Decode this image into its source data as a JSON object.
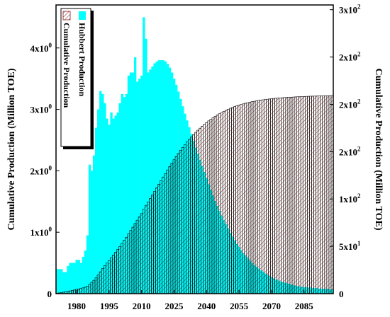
{
  "chart_data": {
    "type": "bar",
    "ylabel_left": "Cumulative Production (Million TOE)",
    "ylabel_right": "Cumulative Production (Million TOE)",
    "x_ticks": [
      "1980",
      "1995",
      "2010",
      "2025",
      "2040",
      "2055",
      "2070",
      "2085"
    ],
    "xlim": [
      1971,
      2098
    ],
    "y_left_ticks": [
      "0",
      "1x10",
      "2x10",
      "3x10",
      "4x10"
    ],
    "y_left_tick_exps": [
      "",
      "0",
      "0",
      "0",
      "0"
    ],
    "y_left_lim": [
      0,
      4.7
    ],
    "y_right_ticks": [
      "0",
      "5x10",
      "1x10",
      "2x10",
      "2x10",
      "2x10",
      "3x10"
    ],
    "y_right_tick_exps": [
      "",
      "1",
      "2",
      "2",
      "2",
      "2",
      "2"
    ],
    "y_right_tick_values": [
      0,
      50,
      100,
      150,
      200,
      250,
      300
    ],
    "y_right_lim": [
      0,
      305
    ],
    "grid": false,
    "legend_position": "top-left, rotated vertically",
    "series": [
      {
        "name": "Hubbert Production",
        "axis": "left",
        "style": "filled",
        "color": "#00ffff",
        "x": [
          1971,
          1972,
          1973,
          1974,
          1975,
          1976,
          1977,
          1978,
          1979,
          1980,
          1981,
          1982,
          1983,
          1984,
          1985,
          1986,
          1987,
          1988,
          1989,
          1990,
          1991,
          1992,
          1993,
          1994,
          1995,
          1996,
          1997,
          1998,
          1999,
          2000,
          2001,
          2002,
          2003,
          2004,
          2005,
          2006,
          2007,
          2008,
          2009,
          2010,
          2011,
          2012,
          2013,
          2014,
          2015,
          2016,
          2017,
          2018,
          2019,
          2020,
          2021,
          2022,
          2023,
          2024,
          2025,
          2026,
          2027,
          2028,
          2029,
          2030,
          2031,
          2032,
          2033,
          2034,
          2035,
          2036,
          2037,
          2038,
          2039,
          2040,
          2041,
          2042,
          2043,
          2044,
          2045,
          2046,
          2047,
          2048,
          2049,
          2050,
          2051,
          2052,
          2053,
          2054,
          2055,
          2056,
          2057,
          2058,
          2059,
          2060,
          2061,
          2062,
          2063,
          2064,
          2065,
          2066,
          2067,
          2068,
          2069,
          2070,
          2071,
          2072,
          2073,
          2074,
          2075,
          2076,
          2077,
          2078,
          2079,
          2080,
          2081,
          2082,
          2083,
          2084,
          2085,
          2086,
          2087,
          2088,
          2089,
          2090,
          2091,
          2092,
          2093,
          2094,
          2095,
          2096,
          2097,
          2098
        ],
        "values": [
          0.4,
          0.4,
          0.4,
          0.35,
          0.35,
          0.45,
          0.5,
          0.5,
          0.5,
          0.55,
          0.55,
          0.5,
          0.6,
          0.7,
          0.95,
          2.1,
          2.0,
          2.25,
          2.7,
          3.0,
          3.3,
          3.25,
          3.1,
          2.85,
          2.75,
          2.95,
          2.85,
          2.9,
          2.95,
          3.1,
          3.25,
          3.2,
          3.25,
          3.55,
          3.6,
          3.6,
          3.85,
          3.45,
          3.5,
          3.55,
          4.5,
          4.15,
          3.6,
          3.65,
          3.7,
          3.75,
          3.78,
          3.8,
          3.8,
          3.8,
          3.78,
          3.74,
          3.68,
          3.6,
          3.5,
          3.4,
          3.29,
          3.17,
          3.05,
          2.93,
          2.82,
          2.71,
          2.6,
          2.49,
          2.38,
          2.28,
          2.18,
          2.08,
          1.98,
          1.88,
          1.78,
          1.69,
          1.6,
          1.51,
          1.43,
          1.35,
          1.27,
          1.2,
          1.13,
          1.06,
          0.99,
          0.93,
          0.87,
          0.81,
          0.76,
          0.71,
          0.66,
          0.62,
          0.58,
          0.54,
          0.5,
          0.47,
          0.44,
          0.41,
          0.38,
          0.36,
          0.33,
          0.31,
          0.29,
          0.27,
          0.25,
          0.23,
          0.22,
          0.2,
          0.19,
          0.18,
          0.17,
          0.16,
          0.15,
          0.14,
          0.13,
          0.12,
          0.12,
          0.11,
          0.11,
          0.1,
          0.1,
          0.1,
          0.09,
          0.09,
          0.09,
          0.08,
          0.08,
          0.08,
          0.08,
          0.08,
          0.07,
          0.07
        ]
      },
      {
        "name": "Cumulative Production",
        "axis": "right",
        "style": "hatched",
        "color": "#8b1a1a",
        "x": [
          1971,
          1972,
          1973,
          1974,
          1975,
          1976,
          1977,
          1978,
          1979,
          1980,
          1981,
          1982,
          1983,
          1984,
          1985,
          1986,
          1987,
          1988,
          1989,
          1990,
          1991,
          1992,
          1993,
          1994,
          1995,
          1996,
          1997,
          1998,
          1999,
          2000,
          2001,
          2002,
          2003,
          2004,
          2005,
          2006,
          2007,
          2008,
          2009,
          2010,
          2011,
          2012,
          2013,
          2014,
          2015,
          2016,
          2017,
          2018,
          2019,
          2020,
          2021,
          2022,
          2023,
          2024,
          2025,
          2026,
          2027,
          2028,
          2029,
          2030,
          2031,
          2032,
          2033,
          2034,
          2035,
          2036,
          2037,
          2038,
          2039,
          2040,
          2041,
          2042,
          2043,
          2044,
          2045,
          2046,
          2047,
          2048,
          2049,
          2050,
          2051,
          2052,
          2053,
          2054,
          2055,
          2056,
          2057,
          2058,
          2059,
          2060,
          2061,
          2062,
          2063,
          2064,
          2065,
          2066,
          2067,
          2068,
          2069,
          2070,
          2071,
          2072,
          2073,
          2074,
          2075,
          2076,
          2077,
          2078,
          2079,
          2080,
          2081,
          2082,
          2083,
          2084,
          2085,
          2086,
          2087,
          2088,
          2089,
          2090,
          2091,
          2092,
          2093,
          2094,
          2095,
          2096,
          2097,
          2098
        ],
        "values": [
          0.4,
          0.8,
          1.2,
          1.6,
          2.0,
          2.4,
          2.9,
          3.4,
          3.9,
          4.5,
          5.0,
          5.5,
          6.1,
          6.8,
          7.8,
          9.9,
          11.9,
          14.1,
          16.8,
          19.8,
          23.1,
          26.4,
          29.5,
          32.3,
          35.1,
          38.0,
          40.9,
          43.8,
          46.7,
          49.8,
          53.1,
          56.3,
          59.5,
          63.1,
          66.7,
          70.3,
          74.1,
          77.6,
          81.1,
          84.6,
          89.1,
          93.3,
          96.9,
          100.5,
          104.2,
          108.0,
          111.8,
          115.6,
          119.4,
          123.2,
          126.9,
          130.7,
          134.4,
          138.0,
          141.5,
          144.9,
          148.2,
          151.4,
          154.4,
          157.3,
          160.2,
          162.9,
          165.5,
          168.0,
          170.4,
          172.6,
          174.8,
          176.9,
          178.9,
          180.7,
          182.5,
          184.2,
          185.8,
          187.3,
          188.8,
          190.1,
          191.4,
          192.6,
          193.7,
          194.8,
          195.8,
          196.7,
          197.6,
          198.4,
          199.2,
          199.9,
          200.5,
          201.2,
          201.7,
          202.3,
          202.8,
          203.2,
          203.7,
          204.1,
          204.4,
          204.8,
          205.1,
          205.4,
          205.7,
          205.9,
          206.2,
          206.4,
          206.6,
          206.8,
          207.0,
          207.2,
          207.3,
          207.5,
          207.6,
          207.7,
          207.9,
          208.0,
          208.1,
          208.2,
          208.3,
          208.4,
          208.5,
          208.6,
          208.7,
          208.7,
          208.8,
          208.9,
          209.0,
          209.0,
          209.1,
          209.2,
          209.2,
          209.3
        ]
      }
    ]
  }
}
